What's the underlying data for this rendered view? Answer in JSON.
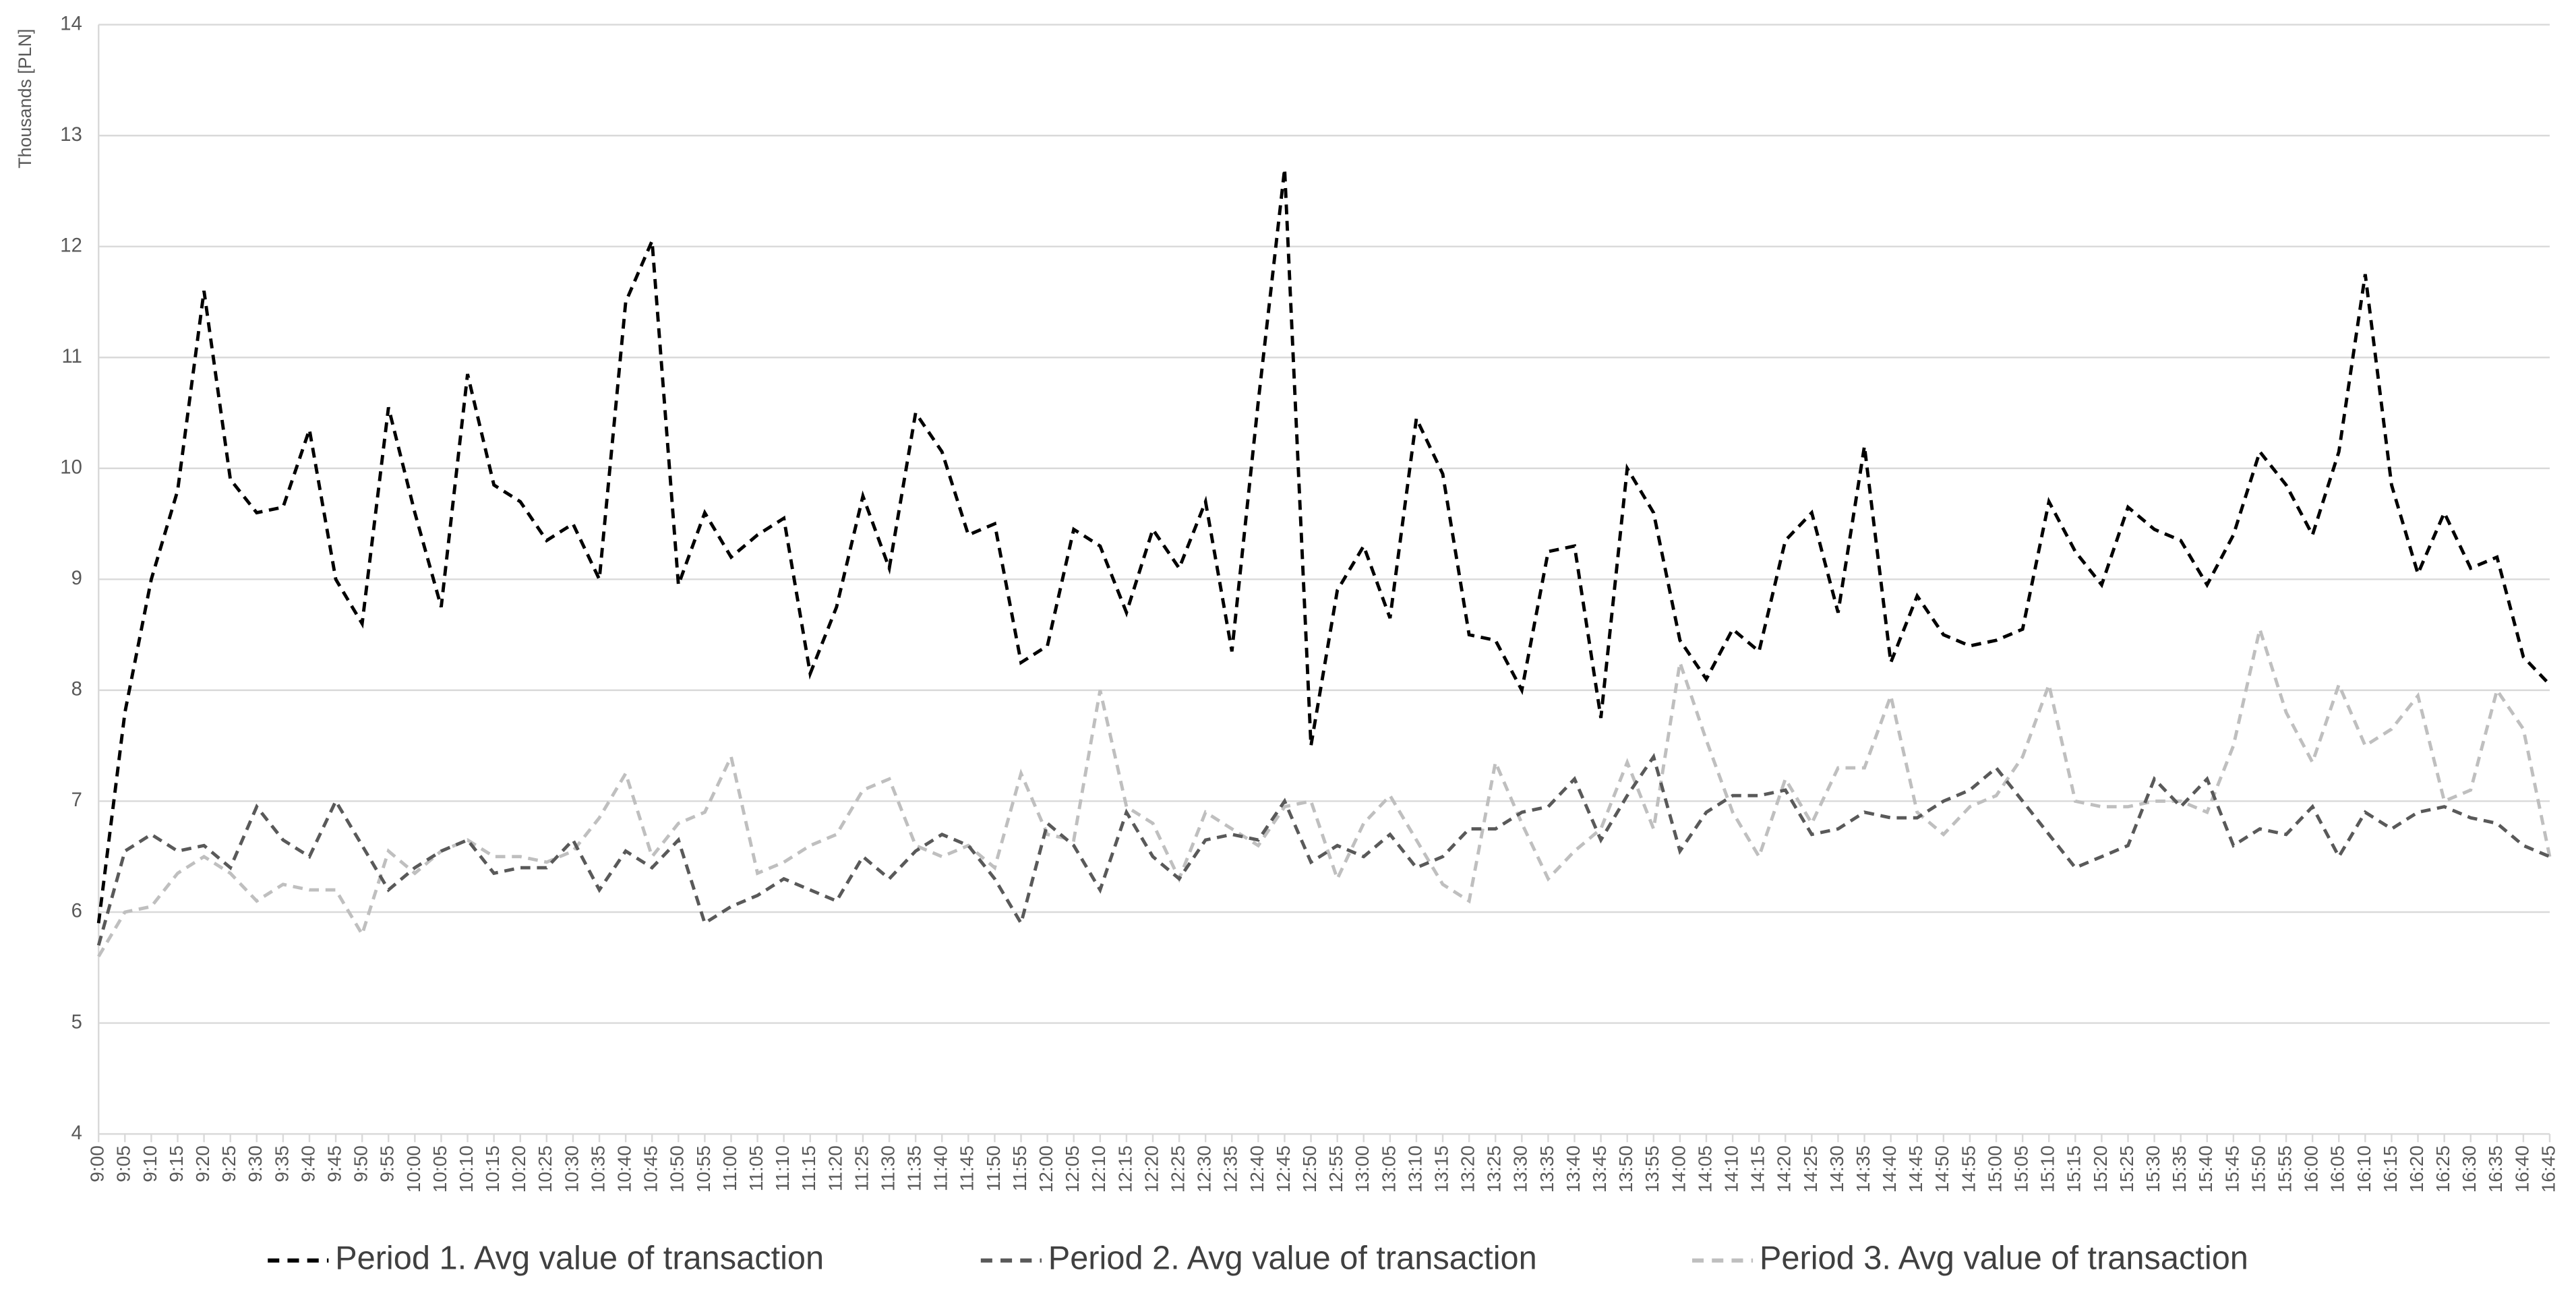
{
  "chart_data": {
    "type": "line",
    "y_label": "Thousands [PLN]",
    "categories": [
      "9:00",
      "9:05",
      "9:10",
      "9:15",
      "9:20",
      "9:25",
      "9:30",
      "9:35",
      "9:40",
      "9:45",
      "9:50",
      "9:55",
      "10:00",
      "10:05",
      "10:10",
      "10:15",
      "10:20",
      "10:25",
      "10:30",
      "10:35",
      "10:40",
      "10:45",
      "10:50",
      "10:55",
      "11:00",
      "11:05",
      "11:10",
      "11:15",
      "11:20",
      "11:25",
      "11:30",
      "11:35",
      "11:40",
      "11:45",
      "11:50",
      "11:55",
      "12:00",
      "12:05",
      "12:10",
      "12:15",
      "12:20",
      "12:25",
      "12:30",
      "12:35",
      "12:40",
      "12:45",
      "12:50",
      "12:55",
      "13:00",
      "13:05",
      "13:10",
      "13:15",
      "13:20",
      "13:25",
      "13:30",
      "13:35",
      "13:40",
      "13:45",
      "13:50",
      "13:55",
      "14:00",
      "14:05",
      "14:10",
      "14:15",
      "14:20",
      "14:25",
      "14:30",
      "14:35",
      "14:40",
      "14:45",
      "14:50",
      "14:55",
      "15:00",
      "15:05",
      "15:10",
      "15:15",
      "15:20",
      "15:25",
      "15:30",
      "15:35",
      "15:40",
      "15:45",
      "15:50",
      "15:55",
      "16:00",
      "16:05",
      "16:10",
      "16:15",
      "16:20",
      "16:25",
      "16:30",
      "16:35",
      "16:40",
      "16:45"
    ],
    "series": [
      {
        "name": "Period 1. Avg value of transaction",
        "color": "#000000",
        "values": [
          5.9,
          7.8,
          9.0,
          9.8,
          11.6,
          9.9,
          9.6,
          9.65,
          10.35,
          9.0,
          8.6,
          10.55,
          9.6,
          8.75,
          10.85,
          9.85,
          9.7,
          9.35,
          9.5,
          9.0,
          11.5,
          12.05,
          8.95,
          9.6,
          9.2,
          9.4,
          9.55,
          8.15,
          8.75,
          9.75,
          9.1,
          10.5,
          10.15,
          9.4,
          9.5,
          8.25,
          8.4,
          9.45,
          9.3,
          8.7,
          9.45,
          9.1,
          9.7,
          8.35,
          10.6,
          12.7,
          7.5,
          8.9,
          9.3,
          8.65,
          10.45,
          9.95,
          8.5,
          8.45,
          8.0,
          9.25,
          9.3,
          7.75,
          10.0,
          9.6,
          8.45,
          8.1,
          8.55,
          8.35,
          9.35,
          9.6,
          8.7,
          10.2,
          8.25,
          8.85,
          8.5,
          8.4,
          8.45,
          8.55,
          9.7,
          9.25,
          8.95,
          9.65,
          9.45,
          9.35,
          8.95,
          9.4,
          10.15,
          9.85,
          9.4,
          10.15,
          11.75,
          9.85,
          9.05,
          9.6,
          9.1,
          9.2,
          8.3,
          8.05
        ]
      },
      {
        "name": "Period 2. Avg value of transaction",
        "color": "#595959",
        "values": [
          5.7,
          6.55,
          6.7,
          6.55,
          6.6,
          6.4,
          6.95,
          6.65,
          6.5,
          7.0,
          6.6,
          6.2,
          6.4,
          6.55,
          6.65,
          6.35,
          6.4,
          6.4,
          6.65,
          6.2,
          6.55,
          6.4,
          6.65,
          5.9,
          6.05,
          6.15,
          6.3,
          6.2,
          6.1,
          6.5,
          6.3,
          6.55,
          6.7,
          6.6,
          6.3,
          5.9,
          6.8,
          6.6,
          6.2,
          6.9,
          6.5,
          6.3,
          6.65,
          6.7,
          6.65,
          7.0,
          6.45,
          6.6,
          6.5,
          6.7,
          6.4,
          6.5,
          6.75,
          6.75,
          6.9,
          6.95,
          7.2,
          6.65,
          7.05,
          7.4,
          6.55,
          6.9,
          7.05,
          7.05,
          7.1,
          6.7,
          6.75,
          6.9,
          6.85,
          6.85,
          7.0,
          7.1,
          7.3,
          7.0,
          6.7,
          6.4,
          6.5,
          6.6,
          7.2,
          6.95,
          7.2,
          6.6,
          6.75,
          6.7,
          6.95,
          6.5,
          6.9,
          6.75,
          6.9,
          6.95,
          6.85,
          6.8,
          6.6,
          6.5
        ]
      },
      {
        "name": "Period 3. Avg value of transaction",
        "color": "#bfbfbf",
        "values": [
          5.6,
          6.0,
          6.05,
          6.35,
          6.5,
          6.35,
          6.1,
          6.25,
          6.2,
          6.2,
          5.8,
          6.55,
          6.35,
          6.55,
          6.65,
          6.5,
          6.5,
          6.45,
          6.55,
          6.85,
          7.25,
          6.5,
          6.8,
          6.9,
          7.4,
          6.35,
          6.45,
          6.6,
          6.7,
          7.1,
          7.2,
          6.6,
          6.5,
          6.6,
          6.4,
          7.25,
          6.7,
          6.65,
          8.0,
          6.95,
          6.8,
          6.3,
          6.9,
          6.75,
          6.6,
          6.95,
          7.0,
          6.3,
          6.8,
          7.05,
          6.65,
          6.25,
          6.1,
          7.35,
          6.8,
          6.3,
          6.55,
          6.75,
          7.35,
          6.75,
          8.25,
          7.55,
          6.9,
          6.5,
          7.2,
          6.8,
          7.3,
          7.3,
          7.95,
          6.9,
          6.7,
          6.95,
          7.05,
          7.4,
          8.05,
          7.0,
          6.95,
          6.95,
          7.0,
          7.0,
          6.9,
          7.5,
          8.55,
          7.8,
          7.35,
          8.05,
          7.5,
          7.65,
          7.95,
          7.0,
          7.1,
          8.0,
          7.65,
          6.5
        ]
      }
    ],
    "ylim": [
      4,
      14
    ],
    "yticks": [
      4,
      5,
      6,
      7,
      8,
      9,
      10,
      11,
      12,
      13,
      14
    ],
    "grid": true
  }
}
